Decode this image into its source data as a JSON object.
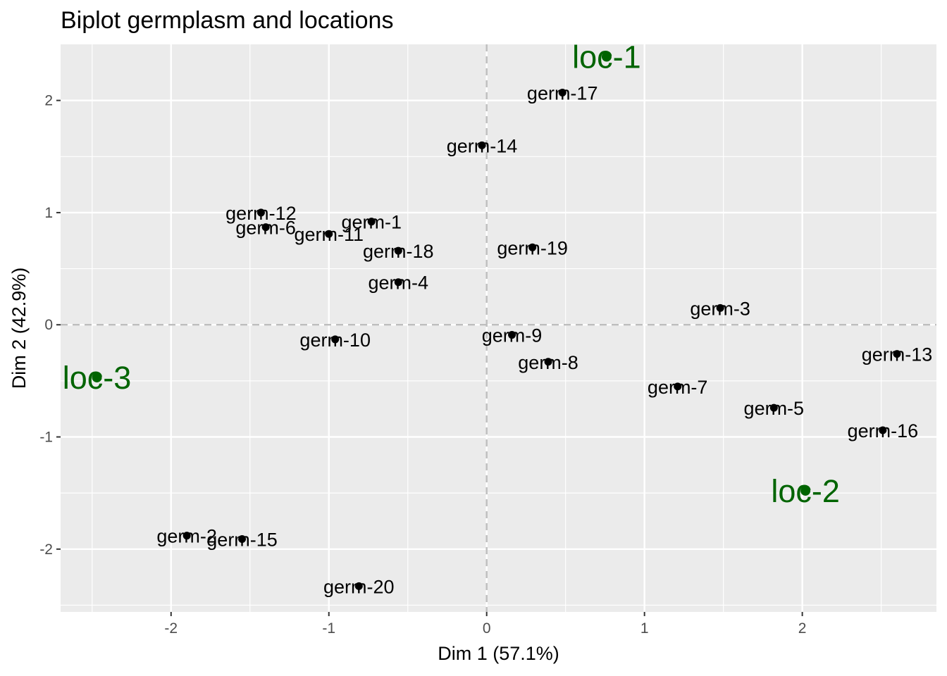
{
  "chart_data": {
    "type": "scatter",
    "title": "Biplot germplasm and locations",
    "xlabel": "Dim 1 (57.1%)",
    "ylabel": "Dim 2 (42.9%)",
    "xlim": [
      -2.7,
      2.85
    ],
    "ylim": [
      -2.56,
      2.5
    ],
    "x_ticks": [
      -2,
      -1,
      0,
      1,
      2
    ],
    "y_ticks": [
      -2,
      -1,
      0,
      1,
      2
    ],
    "grid": true,
    "reference_lines": {
      "x": 0,
      "y": 0,
      "style": "dashed"
    },
    "colors": {
      "panel": "#ebebeb",
      "grid": "#ffffff",
      "refline": "#bebebe",
      "germplasm": "#000000",
      "locations": "#006400"
    },
    "series": [
      {
        "name": "germplasm",
        "points": [
          {
            "label": "germ-1",
            "x": -0.73,
            "y": 0.92
          },
          {
            "label": "germ-2",
            "x": -1.9,
            "y": -1.88
          },
          {
            "label": "germ-3",
            "x": 1.48,
            "y": 0.15
          },
          {
            "label": "germ-4",
            "x": -0.56,
            "y": 0.38
          },
          {
            "label": "germ-5",
            "x": 1.82,
            "y": -0.74
          },
          {
            "label": "germ-6",
            "x": -1.4,
            "y": 0.87
          },
          {
            "label": "germ-7",
            "x": 1.21,
            "y": -0.55
          },
          {
            "label": "germ-8",
            "x": 0.39,
            "y": -0.33
          },
          {
            "label": "germ-9",
            "x": 0.16,
            "y": -0.09
          },
          {
            "label": "germ-10",
            "x": -0.96,
            "y": -0.13
          },
          {
            "label": "germ-11",
            "x": -1.0,
            "y": 0.81
          },
          {
            "label": "germ-12",
            "x": -1.43,
            "y": 1.0
          },
          {
            "label": "germ-13",
            "x": 2.6,
            "y": -0.26
          },
          {
            "label": "germ-14",
            "x": -0.03,
            "y": 1.6
          },
          {
            "label": "germ-15",
            "x": -1.55,
            "y": -1.91
          },
          {
            "label": "germ-16",
            "x": 2.51,
            "y": -0.94
          },
          {
            "label": "germ-17",
            "x": 0.48,
            "y": 2.07
          },
          {
            "label": "germ-18",
            "x": -0.56,
            "y": 0.66
          },
          {
            "label": "germ-19",
            "x": 0.29,
            "y": 0.69
          },
          {
            "label": "germ-20",
            "x": -0.81,
            "y": -2.33
          }
        ]
      },
      {
        "name": "locations",
        "points": [
          {
            "label": "loc-1",
            "x": 0.76,
            "y": 2.39
          },
          {
            "label": "loc-2",
            "x": 2.02,
            "y": -1.48
          },
          {
            "label": "loc-3",
            "x": -2.47,
            "y": -0.47
          }
        ]
      }
    ]
  }
}
